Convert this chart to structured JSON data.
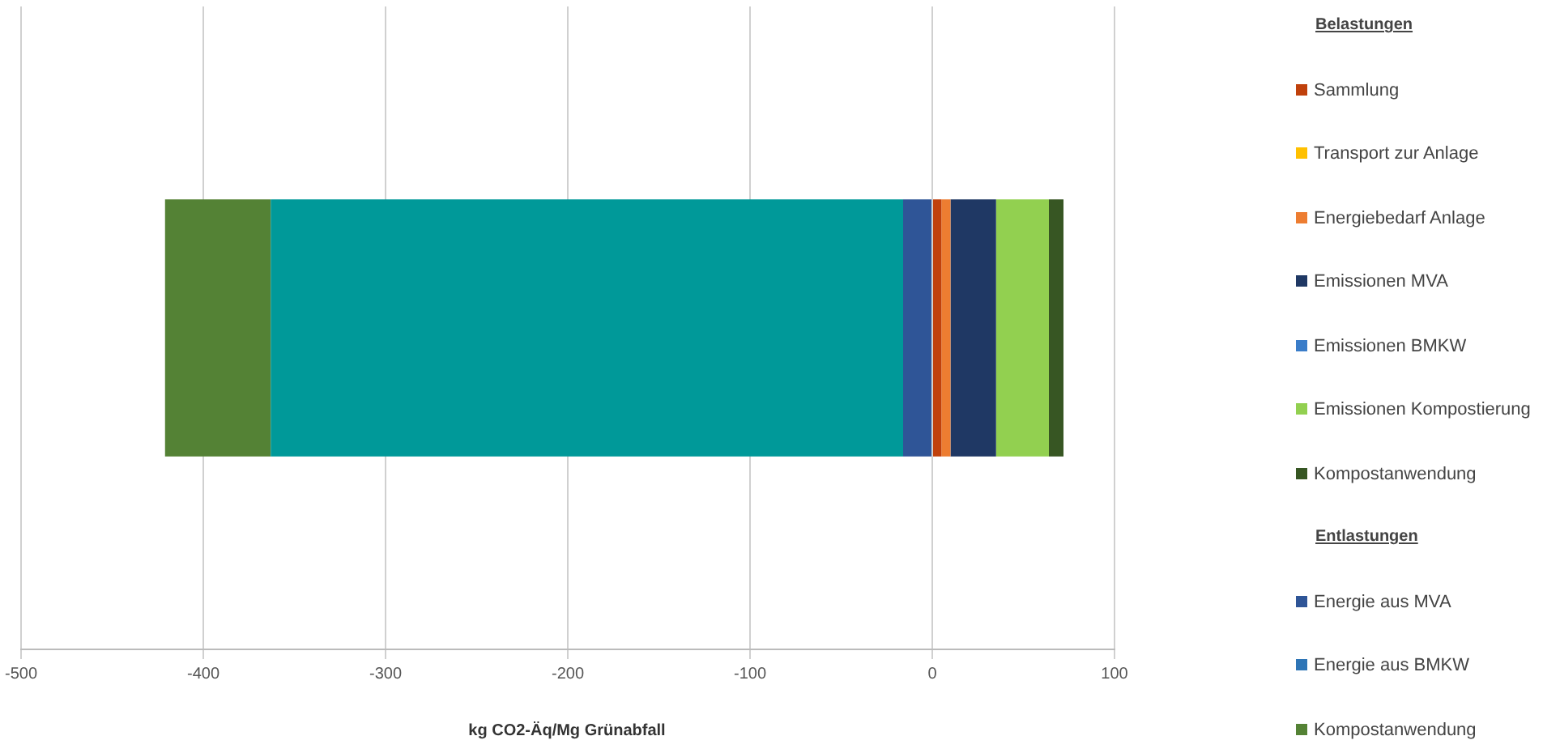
{
  "chart_data": {
    "type": "bar",
    "orientation": "horizontal",
    "stacked": true,
    "categories": [
      null
    ],
    "xlabel": "kg CO2-Äq/Mg Grünabfall",
    "xlim": [
      -500,
      100
    ],
    "xticks": [
      -500,
      -400,
      -300,
      -200,
      -100,
      0,
      100
    ],
    "grid": "x",
    "legend": "right",
    "annotations": [
      "Belastungen",
      "Entlastungen"
    ],
    "series": [
      {
        "name": "Sammlung",
        "color": "#c0410c",
        "values": [
          5
        ]
      },
      {
        "name": "Transport zur Anlage",
        "color": "#ffc000",
        "values": [
          0
        ]
      },
      {
        "name": "Energiebedarf Anlage",
        "color": "#ed7d31",
        "values": [
          5
        ]
      },
      {
        "name": "Emissionen MVA",
        "color": "#1f3864",
        "values": [
          25
        ]
      },
      {
        "name": "Emissionen BMKW",
        "color": "#3a7dc9",
        "values": [
          0
        ]
      },
      {
        "name": "Emissionen Kompostierung",
        "color": "#92d050",
        "values": [
          29
        ]
      },
      {
        "name": "Kompostanwendung",
        "color": "#375623",
        "values": [
          8
        ]
      },
      {
        "name": "Energie aus MVA",
        "color": "#2f5597",
        "values": [
          -16
        ]
      },
      {
        "name": "Energie aus BMKW",
        "color": "#2e75b6",
        "values": [
          0
        ]
      },
      {
        "color": "#009999",
        "values": [
          -347
        ]
      },
      {
        "name": "Kompostanwendung",
        "color": "#548235",
        "values": [
          -58
        ]
      }
    ]
  }
}
